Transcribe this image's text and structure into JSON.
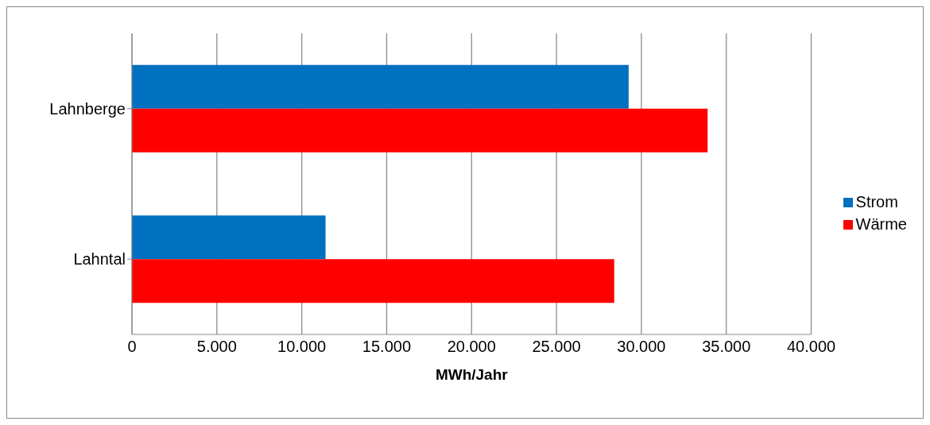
{
  "chart_data": {
    "type": "bar",
    "orientation": "horizontal",
    "xlabel": "MWh/Jahr",
    "categories": [
      "Lahnberge",
      "Lahntal"
    ],
    "series": [
      {
        "name": "Strom",
        "color": "#0070c0",
        "values": [
          29250,
          11400
        ]
      },
      {
        "name": "Wärme",
        "color": "#ff0000",
        "values": [
          33900,
          28400
        ]
      }
    ],
    "xlim": [
      0,
      40000
    ],
    "xticks": [
      0,
      {
        "value": 5000,
        "label": "5.000"
      },
      {
        "value": 10000,
        "label": "10.000"
      },
      {
        "value": 15000,
        "label": "15.000"
      },
      {
        "value": 20000,
        "label": "20.000"
      },
      {
        "value": 25000,
        "label": "25.000"
      },
      {
        "value": 30000,
        "label": "30.000"
      },
      {
        "value": 35000,
        "label": "35.000"
      },
      {
        "value": 40000,
        "label": "40.000"
      }
    ],
    "grid": "x",
    "legend": "right"
  }
}
